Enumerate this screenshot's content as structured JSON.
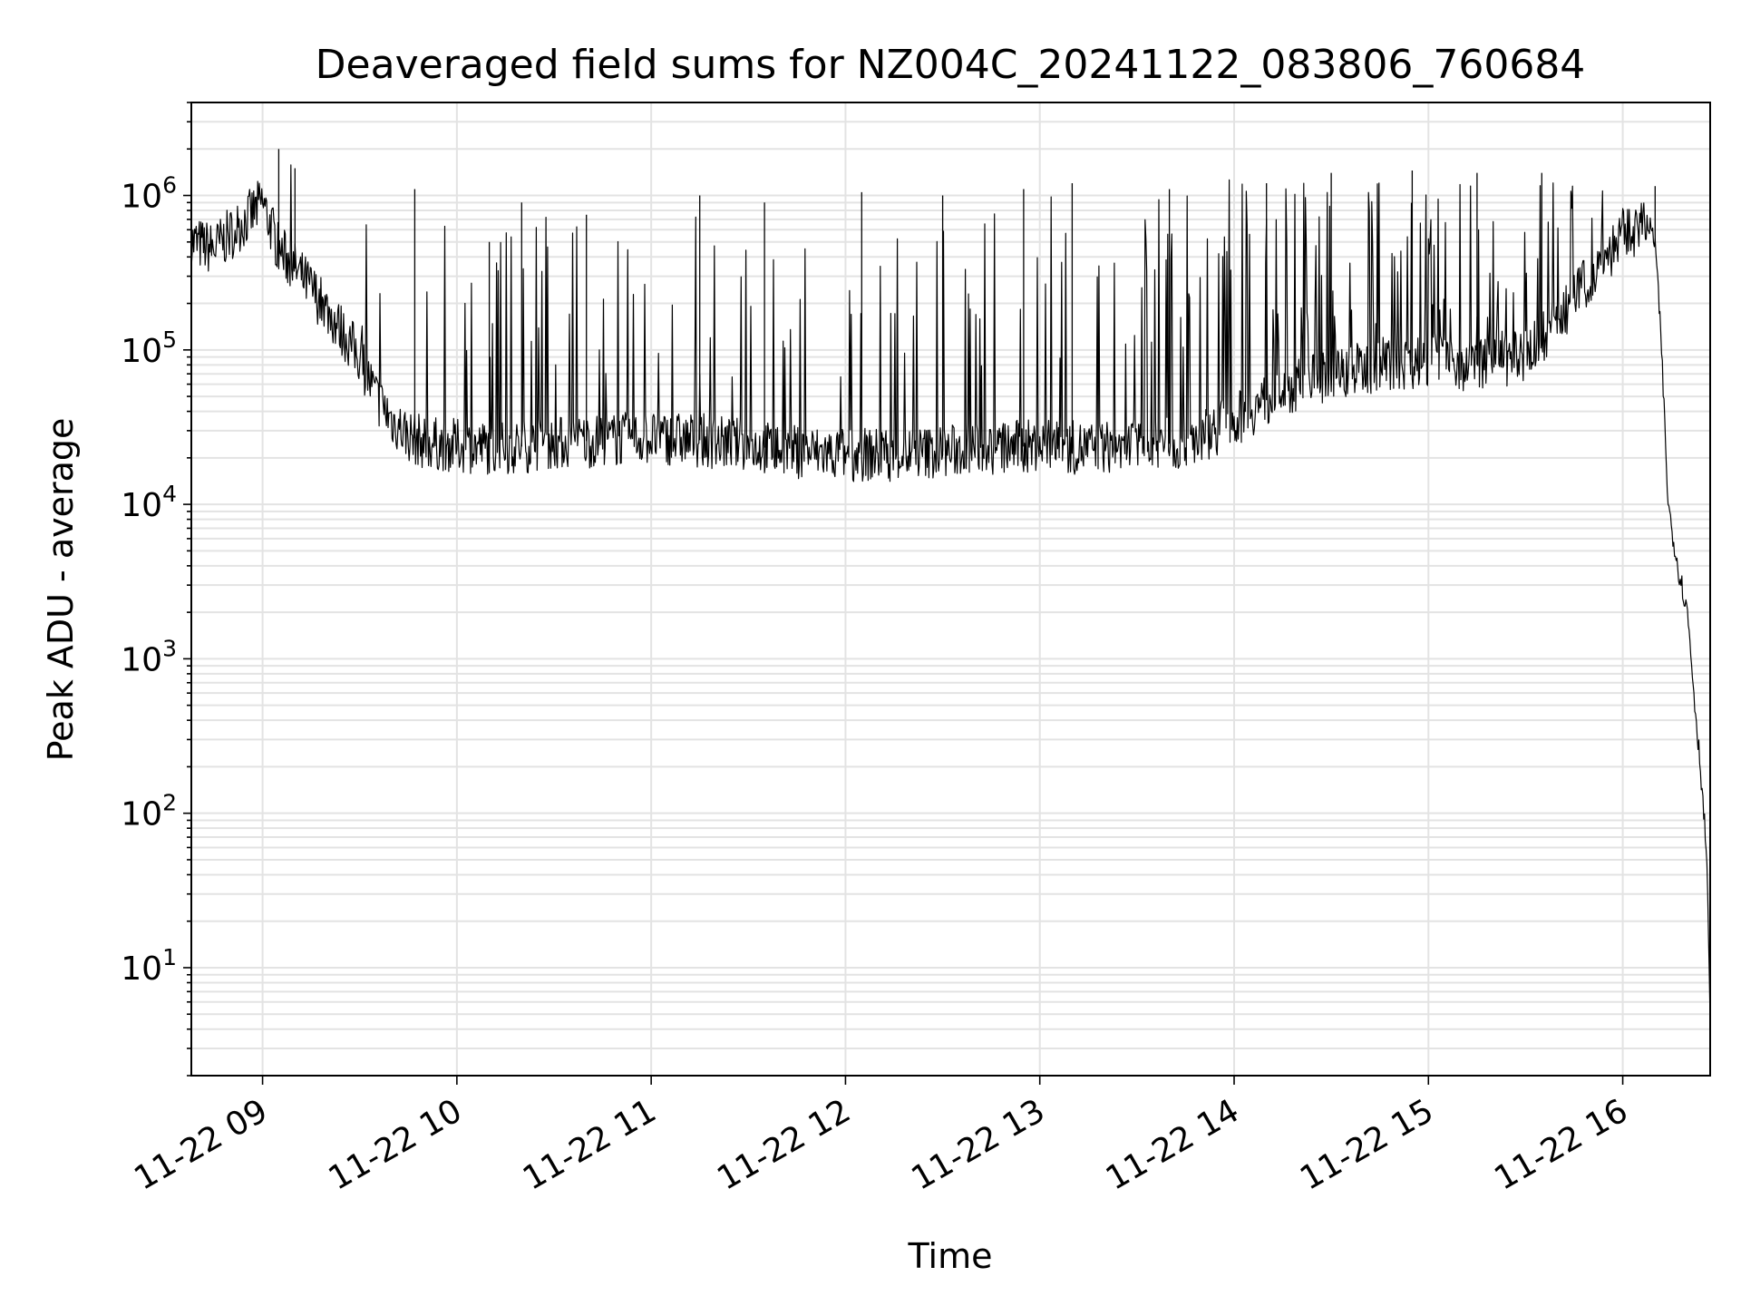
{
  "chart_data": {
    "type": "line",
    "title": "Deaveraged field sums for NZ004C_20241122_083806_760684",
    "xlabel": "Time",
    "ylabel": "Peak ADU - average",
    "yscale": "log",
    "ylim": [
      2,
      4000000
    ],
    "xlim": [
      "2024-11-22 08:38",
      "2024-11-22 16:27"
    ],
    "grid": true,
    "x_ticks": [
      "11-22 09",
      "11-22 10",
      "11-22 11",
      "11-22 12",
      "11-22 13",
      "11-22 14",
      "11-22 15",
      "11-22 16"
    ],
    "y_ticks": [
      {
        "base": "10",
        "exp": "1"
      },
      {
        "base": "10",
        "exp": "2"
      },
      {
        "base": "10",
        "exp": "3"
      },
      {
        "base": "10",
        "exp": "4"
      },
      {
        "base": "10",
        "exp": "5"
      },
      {
        "base": "10",
        "exp": "6"
      }
    ],
    "line_color": "#000000",
    "grid_color": "#e3e3e3",
    "series": [
      {
        "x": [
          "2024-11-22 08:38",
          "2024-11-22 08:45",
          "2024-11-22 08:55",
          "2024-11-22 09:00",
          "2024-11-22 09:05",
          "2024-11-22 09:15",
          "2024-11-22 09:20",
          "2024-11-22 09:30",
          "2024-11-22 09:35",
          "2024-11-22 09:40",
          "2024-11-22 09:45",
          "2024-11-22 09:50",
          "2024-11-22 10:00",
          "2024-11-22 10:15",
          "2024-11-22 10:30",
          "2024-11-22 10:45",
          "2024-11-22 11:00",
          "2024-11-22 11:15",
          "2024-11-22 11:30",
          "2024-11-22 11:45",
          "2024-11-22 12:00",
          "2024-11-22 12:15",
          "2024-11-22 12:30",
          "2024-11-22 12:45",
          "2024-11-22 13:00",
          "2024-11-22 13:15",
          "2024-11-22 13:30",
          "2024-11-22 13:45",
          "2024-11-22 14:00",
          "2024-11-22 14:15",
          "2024-11-22 14:30",
          "2024-11-22 14:45",
          "2024-11-22 15:00",
          "2024-11-22 15:15",
          "2024-11-22 15:30",
          "2024-11-22 15:40",
          "2024-11-22 15:50",
          "2024-11-22 16:00",
          "2024-11-22 16:08",
          "2024-11-22 16:10",
          "2024-11-22 16:12",
          "2024-11-22 16:14",
          "2024-11-22 16:17",
          "2024-11-22 16:20",
          "2024-11-22 16:22",
          "2024-11-22 16:24",
          "2024-11-22 16:26",
          "2024-11-22 16:27"
        ],
        "y": [
          500000,
          450000,
          700000,
          900000,
          450000,
          250000,
          180000,
          90000,
          50000,
          35000,
          28000,
          25000,
          24000,
          23000,
          25000,
          26000,
          27000,
          26000,
          24000,
          22000,
          21000,
          21000,
          22000,
          23000,
          24000,
          23000,
          24000,
          25000,
          35000,
          55000,
          70000,
          80000,
          85000,
          80000,
          90000,
          150000,
          300000,
          550000,
          650000,
          500000,
          100000,
          10000,
          4000,
          2000,
          600,
          200,
          50,
          4
        ],
        "spikes": [
          [
            "2024-11-22 09:05",
            2000000
          ],
          [
            "2024-11-22 09:10",
            1500000
          ],
          [
            "2024-11-22 09:47",
            1100000
          ],
          [
            "2024-11-22 10:10",
            500000
          ],
          [
            "2024-11-22 10:20",
            900000
          ],
          [
            "2024-11-22 10:40",
            750000
          ],
          [
            "2024-11-22 11:15",
            1000000
          ],
          [
            "2024-11-22 11:35",
            900000
          ],
          [
            "2024-11-22 12:05",
            1050000
          ],
          [
            "2024-11-22 12:30",
            1000000
          ],
          [
            "2024-11-22 12:55",
            1100000
          ],
          [
            "2024-11-22 13:10",
            1200000
          ],
          [
            "2024-11-22 13:40",
            1100000
          ],
          [
            "2024-11-22 14:10",
            1200000
          ],
          [
            "2024-11-22 14:30",
            1400000
          ],
          [
            "2024-11-22 14:55",
            1450000
          ],
          [
            "2024-11-22 15:15",
            1400000
          ],
          [
            "2024-11-22 15:35",
            1400000
          ],
          [
            "2024-11-22 16:10",
            1150000
          ]
        ]
      }
    ]
  }
}
